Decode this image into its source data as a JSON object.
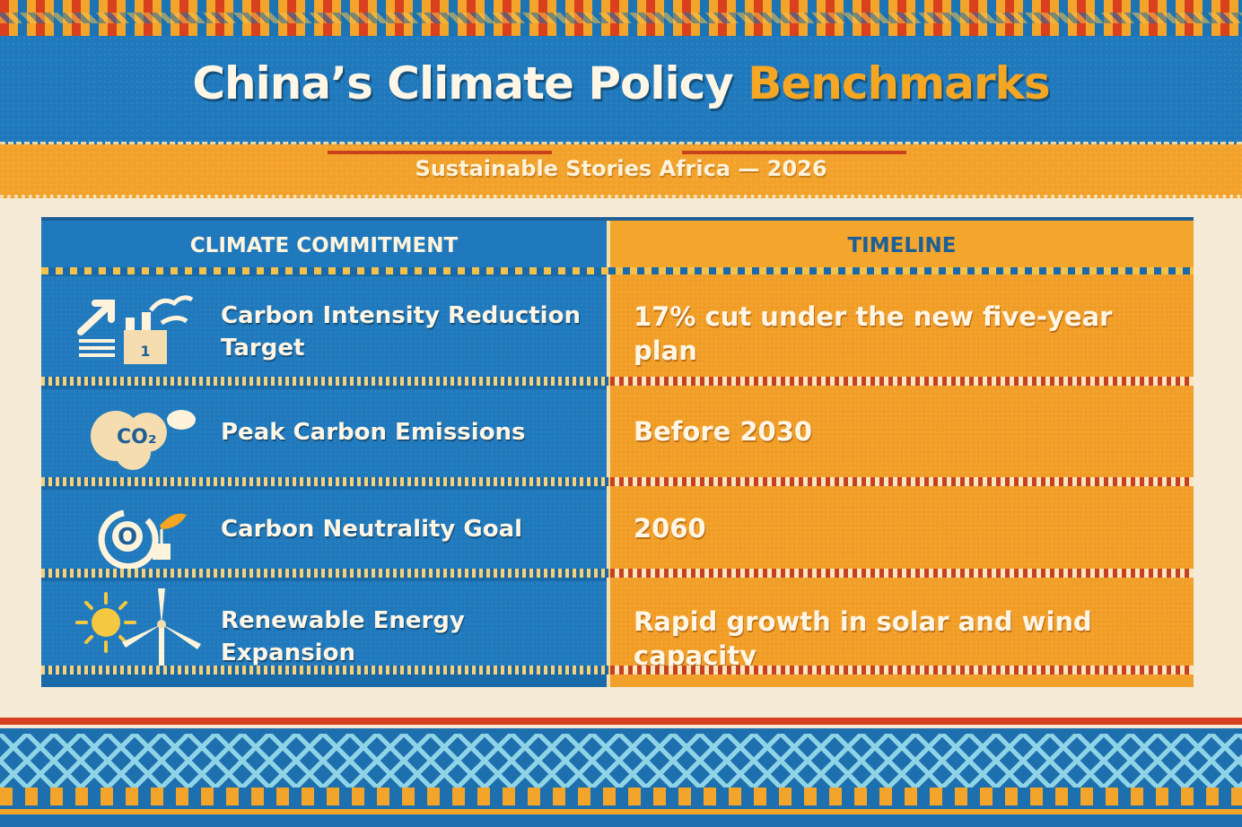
{
  "header": {
    "title_main": "China’s Climate Policy",
    "title_accent": "Benchmarks",
    "subtitle": "Sustainable Stories Africa — 2026"
  },
  "table": {
    "columns": [
      "CLIMATE COMMITMENT",
      "TIMELINE"
    ],
    "rows": [
      {
        "icon": "factory-arrow-icon",
        "commitment": "Carbon Intensity Reduction Target",
        "timeline": "17% cut under the new five-year plan"
      },
      {
        "icon": "co2-cloud-icon",
        "commitment": "Peak Carbon Emissions",
        "timeline": "Before 2030"
      },
      {
        "icon": "neutrality-leaf-icon",
        "commitment": "Carbon Neutrality Goal",
        "timeline": "2060"
      },
      {
        "icon": "sun-wind-turbine-icon",
        "commitment": "Renewable Energy Expansion",
        "timeline": "Rapid growth in solar and wind capacity"
      }
    ]
  },
  "colors": {
    "blue": "#1f79bc",
    "orange": "#f19d25",
    "cream": "#f4ead6",
    "red": "#d5401f"
  },
  "icon_labels": {
    "co2": "CO₂",
    "neutral": "O"
  }
}
